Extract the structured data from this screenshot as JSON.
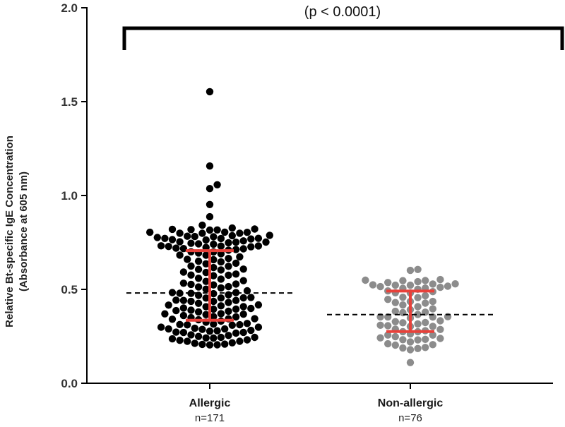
{
  "chart_data": {
    "type": "scatter",
    "subtype": "beeswarm-dot-plot",
    "ylabel_line1": "Relative Bt-specific IgE Concentration",
    "ylabel_line2": "(Absorbance at 605 nm)",
    "ylim": [
      0,
      2
    ],
    "yticks": [
      "0.0",
      "0.5",
      "1.0",
      "1.5",
      "2.0"
    ],
    "annotation": "(p < 0.0001)",
    "colors": {
      "error_bar": "#e8413a",
      "axis": "#000000",
      "bracket": "#000000"
    },
    "series": [
      {
        "name": "Allergic",
        "n_label": "n=171",
        "count": 171,
        "color": "#000000",
        "median": 0.48,
        "q1": 0.335,
        "q3": 0.705,
        "outliers": [
          1.55,
          1.155,
          1.055,
          1.035,
          0.95,
          0.885,
          0.84,
          0.825,
          0.82,
          0.815
        ],
        "min": 0.2
      },
      {
        "name": "Non-allergic",
        "n_label": "n=76",
        "count": 76,
        "color": "#8c8c8c",
        "median": 0.365,
        "q1": 0.275,
        "q3": 0.49,
        "outliers": [
          0.605,
          0.6,
          0.11
        ],
        "min": 0.18
      }
    ]
  }
}
